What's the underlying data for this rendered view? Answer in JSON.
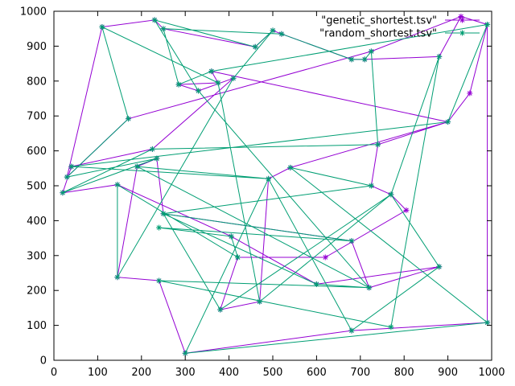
{
  "chart_data": {
    "type": "line",
    "title": "",
    "xlabel": "",
    "ylabel": "",
    "xlim": [
      0,
      1000
    ],
    "ylim": [
      0,
      1000
    ],
    "x_ticks": [
      0,
      100,
      200,
      300,
      400,
      500,
      600,
      700,
      800,
      900,
      1000
    ],
    "y_ticks": [
      0,
      100,
      200,
      300,
      400,
      500,
      600,
      700,
      800,
      900,
      1000
    ],
    "grid": false,
    "legend_position": "top-right",
    "marker": "asterisk",
    "cities": [
      [
        110,
        955
      ],
      [
        230,
        975
      ],
      [
        250,
        950
      ],
      [
        500,
        945
      ],
      [
        520,
        935
      ],
      [
        460,
        898
      ],
      [
        680,
        862
      ],
      [
        710,
        862
      ],
      [
        725,
        885
      ],
      [
        880,
        870
      ],
      [
        930,
        985
      ],
      [
        990,
        962
      ],
      [
        360,
        828
      ],
      [
        410,
        808
      ],
      [
        375,
        795
      ],
      [
        285,
        790
      ],
      [
        330,
        772
      ],
      [
        950,
        765
      ],
      [
        170,
        692
      ],
      [
        900,
        683
      ],
      [
        225,
        605
      ],
      [
        740,
        618
      ],
      [
        40,
        555
      ],
      [
        235,
        578
      ],
      [
        190,
        555
      ],
      [
        540,
        552
      ],
      [
        30,
        525
      ],
      [
        490,
        520
      ],
      [
        20,
        480
      ],
      [
        145,
        503
      ],
      [
        725,
        500
      ],
      [
        770,
        475
      ],
      [
        805,
        430
      ],
      [
        250,
        420
      ],
      [
        405,
        355
      ],
      [
        240,
        380
      ],
      [
        680,
        342
      ],
      [
        420,
        295
      ],
      [
        620,
        295
      ],
      [
        145,
        238
      ],
      [
        240,
        228
      ],
      [
        600,
        218
      ],
      [
        720,
        208
      ],
      [
        880,
        268
      ],
      [
        380,
        145
      ],
      [
        470,
        168
      ],
      [
        680,
        85
      ],
      [
        770,
        95
      ],
      [
        990,
        108
      ],
      [
        300,
        20
      ]
    ],
    "series": [
      {
        "name": "\"genetic_shortest.tsv\"",
        "color": "#9400d3",
        "order": [
          0,
          1,
          2,
          5,
          3,
          4,
          6,
          7,
          9,
          10,
          11,
          17,
          19,
          21,
          30,
          31,
          32,
          38,
          37,
          44,
          45,
          27,
          25,
          19,
          12,
          14,
          15,
          16,
          13,
          20,
          22,
          28,
          29,
          34,
          41,
          43,
          42,
          36,
          33,
          23,
          24,
          39,
          40,
          49,
          46,
          48,
          11,
          10,
          8,
          18,
          26,
          0
        ]
      },
      {
        "name": "\"random_shortest.tsv\"",
        "color": "#009e73",
        "order": [
          0,
          18,
          26,
          23,
          28,
          20,
          21,
          8,
          7,
          6,
          4,
          2,
          15,
          12,
          11,
          19,
          22,
          27,
          24,
          42,
          41,
          33,
          36,
          35,
          34,
          37,
          29,
          39,
          13,
          3,
          5,
          1,
          16,
          42,
          40,
          47,
          9,
          31,
          43,
          46,
          27,
          49,
          48,
          25,
          30,
          33,
          44,
          31,
          45,
          14,
          0
        ]
      }
    ]
  }
}
